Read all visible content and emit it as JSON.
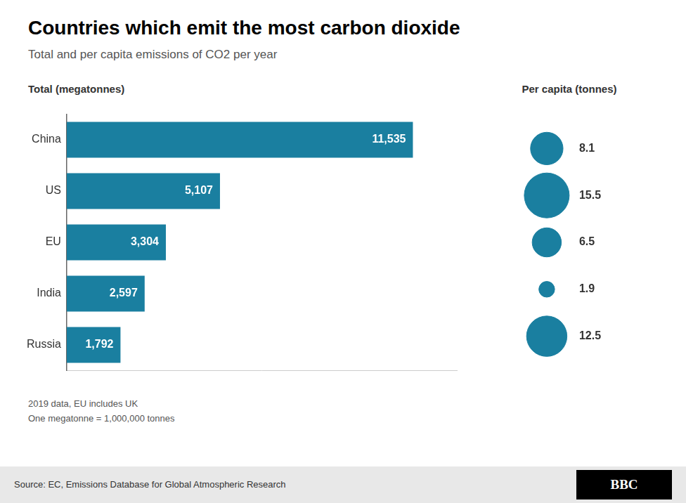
{
  "chart_data": [
    {
      "type": "bar",
      "orientation": "horizontal",
      "title": "Countries which emit the most carbon dioxide",
      "subtitle": "Total and per capita emissions of CO2 per year",
      "xlabel": "Total (megatonnes)",
      "categories": [
        "China",
        "US",
        "EU",
        "India",
        "Russia"
      ],
      "values": [
        11535,
        5107,
        3304,
        2597,
        1792
      ],
      "value_labels": [
        "11,535",
        "5,107",
        "3,304",
        "2,597",
        "1,792"
      ],
      "data_labels": true,
      "color": "#1a7fa0",
      "xlim": [
        0,
        13000
      ],
      "tick_labels": "y",
      "grid": false,
      "annotations": [
        "2019 data, EU includes UK\nOne megatonne = 1,000,000 tonnes",
        "Source: EC, Emissions Database for Global Atmospheric Research",
        "BBC"
      ]
    },
    {
      "type": "bubble",
      "title": "Per capita (tonnes)",
      "categories": [
        "China",
        "US",
        "EU",
        "India",
        "Russia"
      ],
      "values": [
        8.1,
        15.5,
        6.5,
        1.9,
        12.5
      ],
      "data_labels": true,
      "color": "#1a7fa0",
      "tick_labels": false,
      "grid": false
    }
  ]
}
